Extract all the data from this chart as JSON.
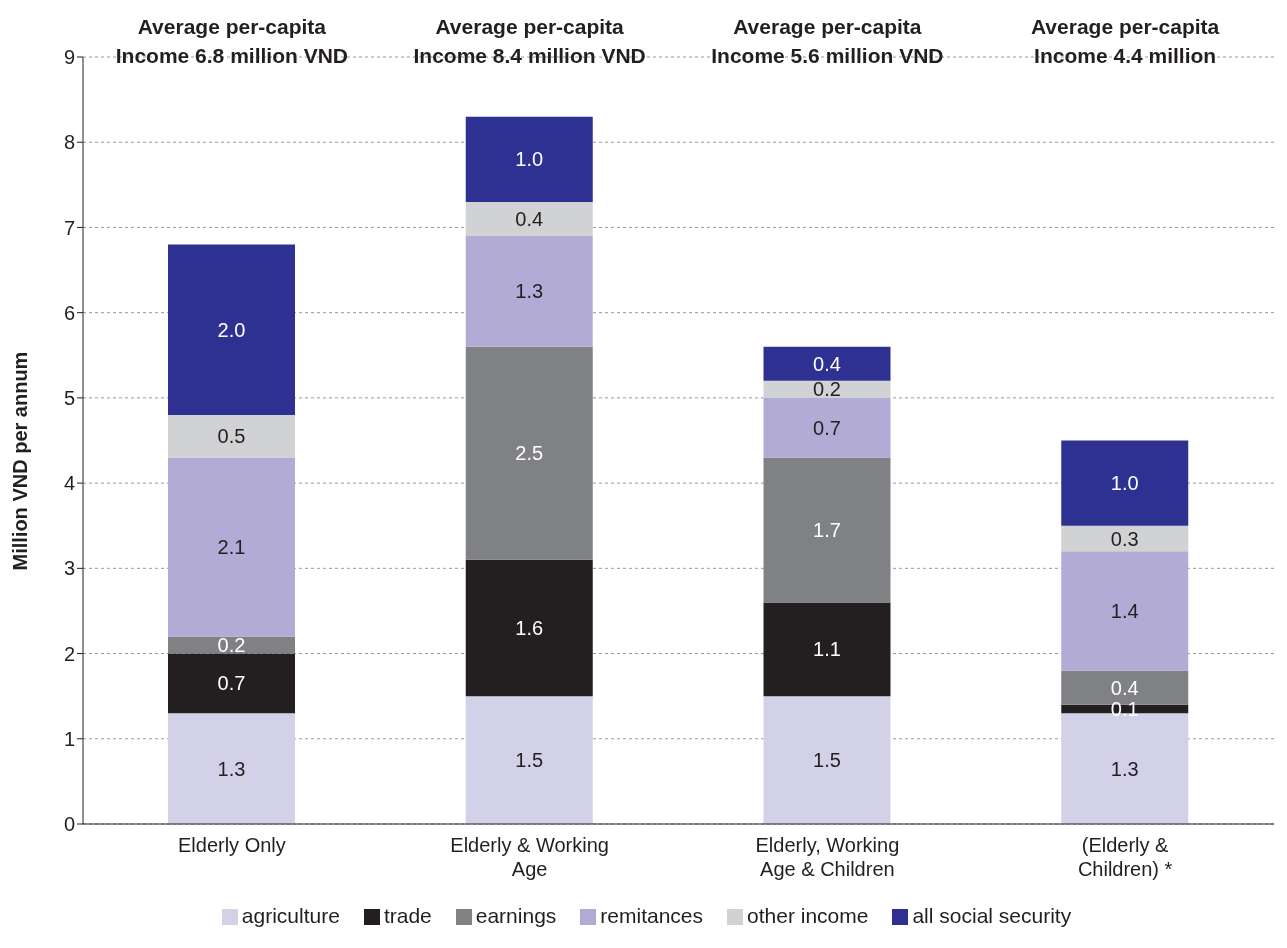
{
  "chart_data": {
    "type": "bar",
    "stacked": true,
    "categories": [
      "Elderly Only",
      "Elderly & Working Age",
      "Elderly, Working Age & Children",
      "(Elderly & Children) *"
    ],
    "series": [
      {
        "name": "agriculture",
        "color": "#d3d1e8",
        "values": [
          1.3,
          1.5,
          1.5,
          1.3
        ],
        "value_labels": [
          "1.3",
          "1.5",
          "1.5",
          "1.3"
        ]
      },
      {
        "name": "trade",
        "color": "#231f20",
        "values": [
          0.7,
          1.6,
          1.1,
          0.1
        ],
        "value_labels": [
          "0.7",
          "1.6",
          "1.1",
          "0.1"
        ]
      },
      {
        "name": "earnings",
        "color": "#808184",
        "values": [
          0.2,
          2.5,
          1.7,
          0.4
        ],
        "value_labels": [
          "0.2",
          "2.5",
          "1.7",
          "0.4"
        ]
      },
      {
        "name": "remitances",
        "color": "#b1abd6",
        "values": [
          2.1,
          1.3,
          0.7,
          1.4
        ],
        "value_labels": [
          "2.1",
          "1.3",
          "0.7",
          "1.4"
        ]
      },
      {
        "name": "other income",
        "color": "#d1d2d4",
        "values": [
          0.5,
          0.4,
          0.2,
          0.3
        ],
        "value_labels": [
          "0.5",
          "0.4",
          "0.2",
          "0.3"
        ]
      },
      {
        "name": "all social security",
        "color": "#2e3192",
        "values": [
          2.0,
          1.0,
          0.4,
          1.0
        ],
        "value_labels": [
          "2.0",
          "1.0",
          "0.4",
          "1.0"
        ]
      }
    ],
    "ylabel": "Million VND per annum",
    "ylim": [
      0,
      9
    ],
    "yticks": [
      0,
      1,
      2,
      3,
      4,
      5,
      6,
      7,
      8,
      9
    ],
    "annotations": [
      "Average per-capita Income 6.8 million VND",
      "Average per-capita Income 8.4 million VND",
      "Average per-capita Income 5.6 million VND",
      "Average per-capita Income 4.4 million"
    ],
    "grid": "y",
    "legend": "bottom"
  }
}
